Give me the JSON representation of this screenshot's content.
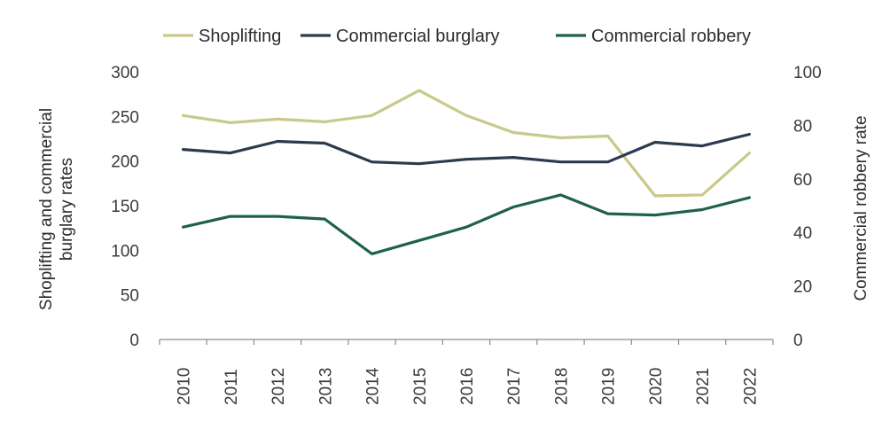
{
  "chart_data": {
    "type": "line",
    "title": "",
    "x": [
      "2010",
      "2011",
      "2012",
      "2013",
      "2014",
      "2015",
      "2016",
      "2017",
      "2018",
      "2019",
      "2020",
      "2021",
      "2022"
    ],
    "ylabel_left": "Shoplifting and commercial burglary rates",
    "ylabel_right": "Commercial robbery rate",
    "ylim_left": [
      0,
      300
    ],
    "ylim_right": [
      0,
      100
    ],
    "yticks_left": [
      "0",
      "50",
      "100",
      "150",
      "200",
      "250",
      "300"
    ],
    "yticks_right": [
      "0",
      "20",
      "40",
      "60",
      "80",
      "100"
    ],
    "legend_position": "top",
    "grid": false,
    "series": [
      {
        "name": "Shoplifting",
        "axis": "left",
        "color": "#c8c98a",
        "values": [
          251,
          243,
          247,
          244,
          251,
          279,
          251,
          232,
          226,
          228,
          161,
          162,
          209
        ]
      },
      {
        "name": "Commercial burglary",
        "axis": "left",
        "color": "#2b3a4e",
        "values": [
          213,
          209,
          222,
          220,
          199,
          197,
          202,
          204,
          199,
          199,
          221,
          217,
          230
        ]
      },
      {
        "name": "Commercial robbery",
        "axis": "right",
        "color": "#1f6347",
        "values": [
          42,
          46,
          46,
          45,
          32,
          37,
          42,
          49.5,
          54,
          47,
          46.5,
          48.5,
          53
        ]
      }
    ]
  }
}
